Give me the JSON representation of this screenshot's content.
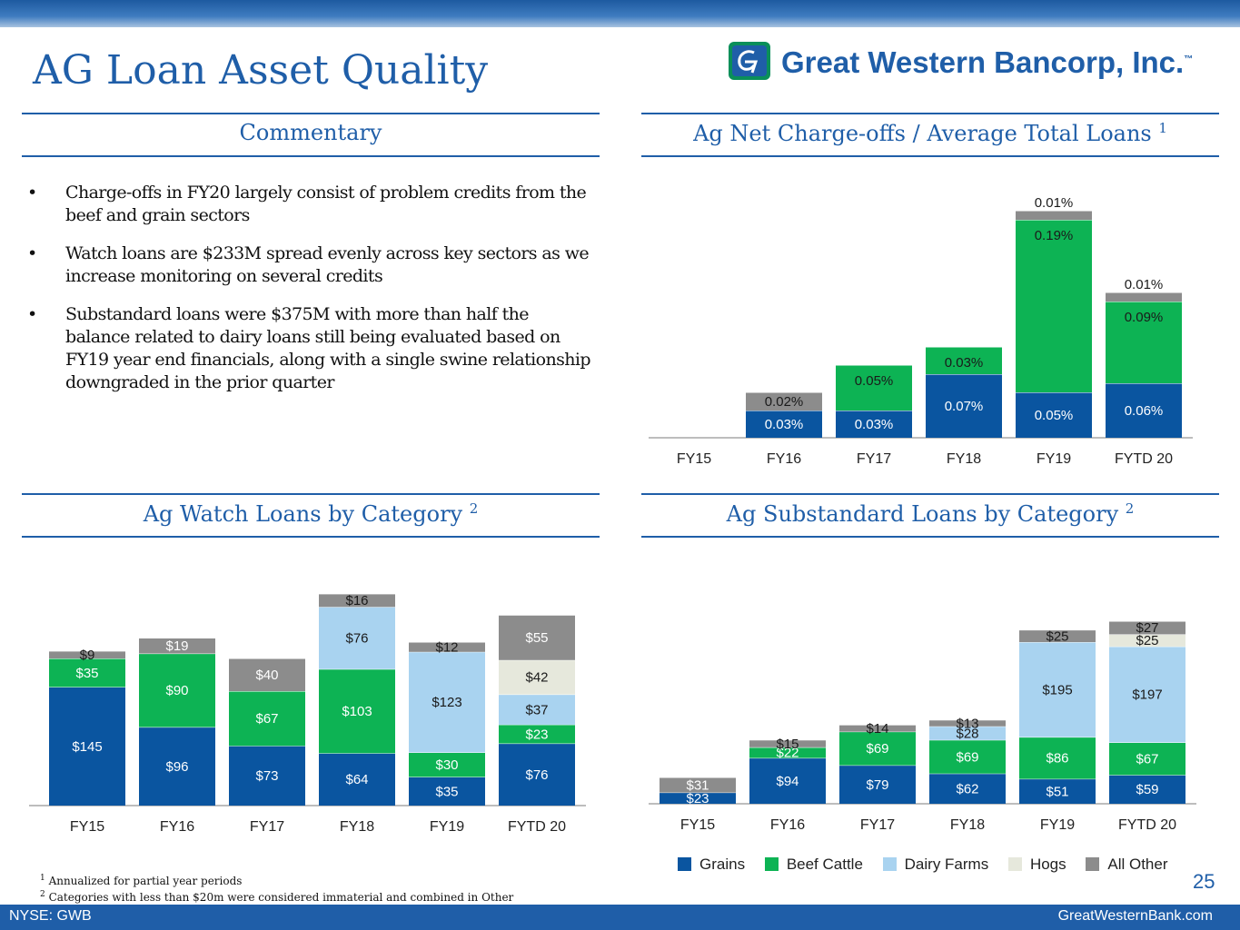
{
  "page": {
    "title": "AG Loan Asset Quality",
    "logo_text": "Great Western Bancorp, Inc.",
    "logo_tm": "™",
    "page_number": "25",
    "footer_left": "NYSE: GWB",
    "footer_right": "GreatWesternBank.com"
  },
  "colors": {
    "brand_blue": "#1f5ea8",
    "Grains": "#0a55a0",
    "Beef Cattle": "#0db354",
    "Dairy Farms": "#a9d3f0",
    "Hogs": "#e6e8dc",
    "All Other": "#8c8c8c"
  },
  "commentary": {
    "heading": "Commentary",
    "bullet_char": "•",
    "bullets": [
      "Charge-offs in FY20 largely consist of problem credits from the beef and grain sectors",
      "Watch loans are $233M spread evenly across key sectors as we increase monitoring on several credits",
      "Substandard loans were $375M with more than half the balance related to dairy loans still being evaluated based on FY19 year end financials, along with a single swine relationship downgraded in the prior quarter"
    ]
  },
  "panels": {
    "nco_title": "Ag Net Charge-offs / Average Total Loans",
    "nco_sup": "1",
    "watch_title": "Ag Watch Loans by Category",
    "watch_sup": "2",
    "sub_title": "Ag Substandard Loans by Category",
    "sub_sup": "2"
  },
  "legend": [
    "Grains",
    "Beef Cattle",
    "Dairy Farms",
    "Hogs",
    "All Other"
  ],
  "footnotes": [
    {
      "num": "1",
      "text": "Annualized for partial year periods"
    },
    {
      "num": "2",
      "text": "Categories with less than $20m were considered immaterial and combined in Other"
    }
  ],
  "chart_data": [
    {
      "id": "nco",
      "type": "bar",
      "stacked": true,
      "title": "Ag Net Charge-offs / Average Total Loans",
      "unit": "%",
      "categories": [
        "FY15",
        "FY16",
        "FY17",
        "FY18",
        "FY19",
        "FYTD 20"
      ],
      "series": [
        {
          "name": "Grains",
          "values": [
            0,
            0.03,
            0.03,
            0.07,
            0.05,
            0.06
          ],
          "labels": [
            "",
            "0.03%",
            "0.03%",
            "0.07%",
            "0.05%",
            "0.06%"
          ]
        },
        {
          "name": "Beef Cattle",
          "values": [
            0,
            0,
            0.05,
            0.03,
            0.19,
            0.09
          ],
          "labels": [
            "",
            "",
            "0.05%",
            "0.03%",
            "0.19%",
            "0.09%"
          ]
        },
        {
          "name": "All Other",
          "values": [
            0,
            0.02,
            0,
            0,
            0.01,
            0.01
          ],
          "labels": [
            "",
            "0.02%",
            "",
            "",
            "0.01%",
            "0.01%"
          ]
        }
      ]
    },
    {
      "id": "watch",
      "type": "bar",
      "stacked": true,
      "title": "Ag Watch Loans by Category",
      "unit": "$M",
      "categories": [
        "FY15",
        "FY16",
        "FY17",
        "FY18",
        "FY19",
        "FYTD 20"
      ],
      "series": [
        {
          "name": "Grains",
          "values": [
            145,
            96,
            73,
            64,
            35,
            76
          ],
          "labels": [
            "$145",
            "$96",
            "$73",
            "$64",
            "$35",
            "$76"
          ]
        },
        {
          "name": "Beef Cattle",
          "values": [
            35,
            90,
            67,
            103,
            30,
            23
          ],
          "labels": [
            "$35",
            "$90",
            "$67",
            "$103",
            "$30",
            "$23"
          ]
        },
        {
          "name": "Dairy Farms",
          "values": [
            0,
            0,
            0,
            76,
            123,
            37
          ],
          "labels": [
            "",
            "",
            "",
            "$76",
            "$123",
            "$37"
          ]
        },
        {
          "name": "Hogs",
          "values": [
            0,
            0,
            0,
            0,
            0,
            42
          ],
          "labels": [
            "",
            "",
            "",
            "",
            "",
            "$42"
          ]
        },
        {
          "name": "All Other",
          "values": [
            9,
            19,
            40,
            16,
            12,
            55
          ],
          "labels": [
            "$9",
            "$19",
            "$40",
            "$16",
            "$12",
            "$55"
          ]
        }
      ]
    },
    {
      "id": "sub",
      "type": "bar",
      "stacked": true,
      "title": "Ag Substandard Loans by Category",
      "unit": "$M",
      "categories": [
        "FY15",
        "FY16",
        "FY17",
        "FY18",
        "FY19",
        "FYTD 20"
      ],
      "series": [
        {
          "name": "Grains",
          "values": [
            23,
            94,
            79,
            62,
            51,
            59
          ],
          "labels": [
            "$23",
            "$94",
            "$79",
            "$62",
            "$51",
            "$59"
          ]
        },
        {
          "name": "Beef Cattle",
          "values": [
            0,
            22,
            69,
            69,
            86,
            67
          ],
          "labels": [
            "",
            "$22",
            "$69",
            "$69",
            "$86",
            "$67"
          ]
        },
        {
          "name": "Dairy Farms",
          "values": [
            0,
            0,
            0,
            28,
            195,
            197
          ],
          "labels": [
            "",
            "",
            "",
            "$28",
            "$195",
            "$197"
          ]
        },
        {
          "name": "Hogs",
          "values": [
            0,
            0,
            0,
            0,
            0,
            25
          ],
          "labels": [
            "",
            "",
            "",
            "",
            "",
            "$25"
          ]
        },
        {
          "name": "All Other",
          "values": [
            31,
            15,
            14,
            13,
            25,
            27
          ],
          "labels": [
            "$31",
            "$15",
            "$14",
            "$13",
            "$25",
            "$27"
          ]
        }
      ]
    }
  ]
}
